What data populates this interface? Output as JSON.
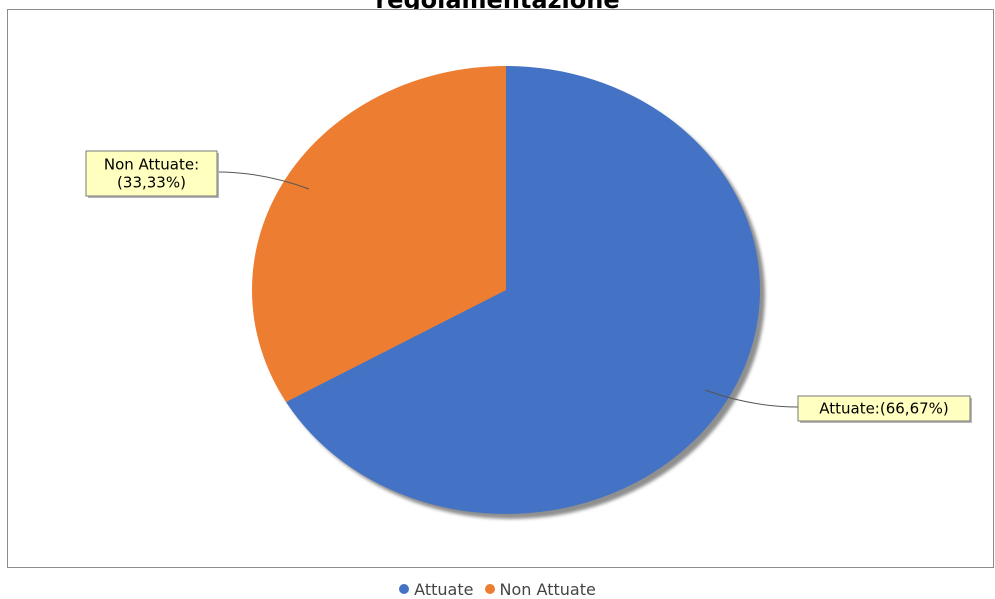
{
  "chart_data": {
    "type": "pie",
    "title": "regolamentazione",
    "slices": [
      {
        "name": "Attuate",
        "value": 66.67,
        "color": "#4472c4",
        "label_lines": [
          "Attuate:(66,67%)"
        ]
      },
      {
        "name": "Non Attuate",
        "value": 33.33,
        "color": "#ed7d31",
        "label_lines": [
          "Non Attuate:",
          "(33,33%)"
        ]
      }
    ],
    "legend": {
      "position": "bottom-center",
      "items": [
        "Attuate",
        "Non Attuate"
      ]
    }
  }
}
